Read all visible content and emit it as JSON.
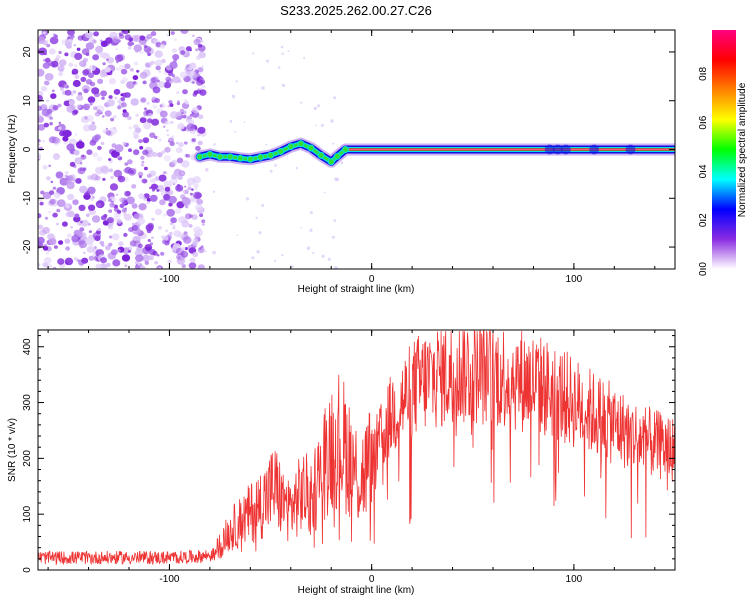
{
  "title": "S233.2025.262.00.27.C26",
  "chart_data": [
    {
      "type": "heatmap",
      "xlabel": "Height of straight line (km)",
      "ylabel": "Frequency (Hz)",
      "xlim": [
        -165,
        150
      ],
      "ylim": [
        -24.5,
        24.5
      ],
      "xticks": [
        -100,
        0,
        100
      ],
      "xtick_labels": [
        "-100",
        "0",
        "100"
      ],
      "yticks": [
        20,
        10,
        0,
        -10,
        -20
      ],
      "ytick_labels": [
        "20",
        "10",
        "0",
        "-10",
        "-20"
      ],
      "noise_region_x": [
        -165,
        -85
      ],
      "trace": [
        {
          "x": -85,
          "y": -1.5
        },
        {
          "x": -80,
          "y": -1.0
        },
        {
          "x": -75,
          "y": -1.5
        },
        {
          "x": -70,
          "y": -1.5
        },
        {
          "x": -65,
          "y": -1.8
        },
        {
          "x": -60,
          "y": -2.0
        },
        {
          "x": -55,
          "y": -1.6
        },
        {
          "x": -50,
          "y": -1.2
        },
        {
          "x": -45,
          "y": -0.4
        },
        {
          "x": -40,
          "y": 0.6
        },
        {
          "x": -35,
          "y": 1.2
        },
        {
          "x": -30,
          "y": 0.3
        },
        {
          "x": -25,
          "y": -1.2
        },
        {
          "x": -20,
          "y": -2.5
        },
        {
          "x": -17,
          "y": -1.4
        },
        {
          "x": -13,
          "y": 0.0
        },
        {
          "x": 0,
          "y": 0.0
        },
        {
          "x": 50,
          "y": 0.0
        },
        {
          "x": 100,
          "y": 0.0
        },
        {
          "x": 150,
          "y": 0.0
        }
      ],
      "colorbar": {
        "label": "Normalized spectral amplitude",
        "ticks": [
          0.0,
          0.2,
          0.4,
          0.6,
          0.8
        ],
        "tick_labels": [
          "0.0",
          "0.2",
          "0.4",
          "0.6",
          "0.8"
        ],
        "range": [
          0,
          0.98
        ],
        "stops": [
          "#ffffff",
          "#8a2be2",
          "#0000ff",
          "#00ffff",
          "#00ff00",
          "#ffff00",
          "#ff8000",
          "#ff0000",
          "#ff0080"
        ]
      }
    },
    {
      "type": "line",
      "xlabel": "Height of straight line (km)",
      "ylabel": "SNR (10 * v/v)",
      "xlim": [
        -165,
        150
      ],
      "ylim": [
        0,
        430
      ],
      "xticks": [
        -100,
        0,
        100
      ],
      "xtick_labels": [
        "-100",
        "0",
        "100"
      ],
      "yticks": [
        0,
        100,
        200,
        300,
        400
      ],
      "ytick_labels": [
        "0",
        "100",
        "200",
        "300",
        "400"
      ],
      "series": [
        {
          "name": "SNR",
          "color": "#ee3333",
          "envelope": {
            "x": [
              -165,
              -130,
              -100,
              -85,
              -78,
              -76,
              -70,
              -62,
              -56,
              -52,
              -48,
              -44,
              -40,
              -34,
              -30,
              -26,
              -22,
              -18,
              -14,
              -10,
              -6,
              -2,
              2,
              6,
              10,
              16,
              22,
              30,
              40,
              50,
              60,
              70,
              80,
              90,
              100,
              110,
              120,
              130,
              140,
              150
            ],
            "y": [
              22,
              22,
              22,
              24,
              28,
              40,
              70,
              95,
              115,
              130,
              150,
              120,
              110,
              140,
              130,
              165,
              210,
              240,
              225,
              200,
              160,
              185,
              215,
              245,
              280,
              305,
              330,
              345,
              355,
              360,
              352,
              345,
              335,
              320,
              300,
              280,
              260,
              240,
              225,
              215
            ]
          }
        }
      ]
    }
  ]
}
